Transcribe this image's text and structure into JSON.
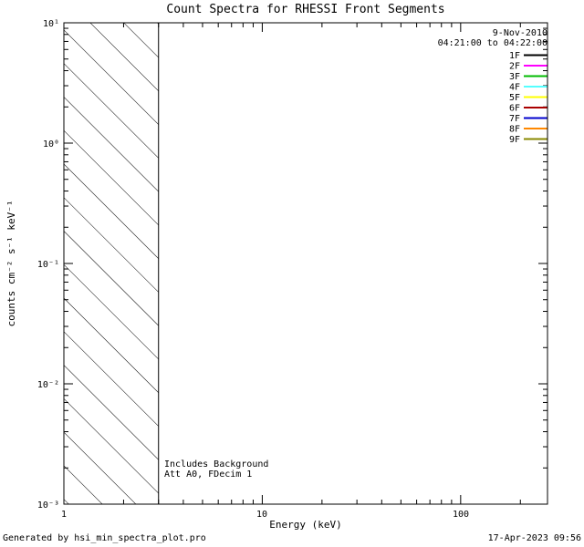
{
  "chart_data": {
    "type": "line",
    "title": "Count Spectra for RHESSI Front Segments",
    "xlabel": "Energy (keV)",
    "ylabel": "counts cm⁻² s⁻¹ keV⁻¹",
    "x_scale": "log",
    "y_scale": "log",
    "xlim": [
      1,
      274
    ],
    "ylim": [
      0.001,
      10
    ],
    "x_ticks": [
      {
        "value": 1,
        "label": "1"
      },
      {
        "value": 10,
        "label": "10"
      },
      {
        "value": 100,
        "label": "100"
      }
    ],
    "y_ticks": [
      {
        "value": 10,
        "label": "10¹"
      },
      {
        "value": 1,
        "label": "10⁰"
      },
      {
        "value": 0.1,
        "label": "10⁻¹"
      },
      {
        "value": 0.01,
        "label": "10⁻²"
      },
      {
        "value": 0.001,
        "label": "10⁻³"
      }
    ],
    "observation_date": "9-Nov-2010",
    "observation_interval": "04:21:00 to 04:22:00",
    "series": [
      {
        "name": "1F",
        "color": "#000000",
        "values": []
      },
      {
        "name": "2F",
        "color": "#ff00ff",
        "values": []
      },
      {
        "name": "3F",
        "color": "#00bb00",
        "values": []
      },
      {
        "name": "4F",
        "color": "#55ffff",
        "values": []
      },
      {
        "name": "5F",
        "color": "#ffff00",
        "values": []
      },
      {
        "name": "6F",
        "color": "#aa0000",
        "values": []
      },
      {
        "name": "7F",
        "color": "#0000cc",
        "values": []
      },
      {
        "name": "8F",
        "color": "#ff8800",
        "values": []
      },
      {
        "name": "9F",
        "color": "#888800",
        "values": []
      }
    ],
    "hatched_region": {
      "x_start": 1,
      "x_end": 3,
      "style": "diagonal-hatch"
    },
    "annotations": {
      "line1": "Includes Background",
      "line2": "Att A0, FDecim 1"
    }
  },
  "footer": {
    "left": "Generated by hsi_min_spectra_plot.pro",
    "right": "17-Apr-2023 09:56"
  }
}
